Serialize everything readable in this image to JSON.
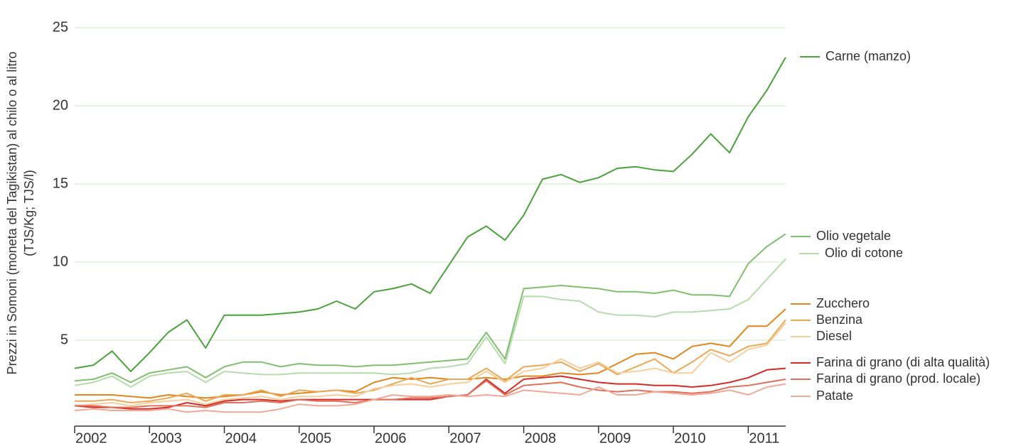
{
  "chart_data": {
    "type": "line",
    "ylabel": [
      "Prezzi in Somoni (moneta del Tagikistan) al chilo o al litro",
      "(TJS/Kg; TJS/l)"
    ],
    "x": [
      2002,
      2002.25,
      2002.5,
      2002.75,
      2003,
      2003.25,
      2003.5,
      2003.75,
      2004,
      2004.25,
      2004.5,
      2004.75,
      2005,
      2005.25,
      2005.5,
      2005.75,
      2006,
      2006.25,
      2006.5,
      2006.75,
      2007,
      2007.25,
      2007.5,
      2007.75,
      2008,
      2008.25,
      2008.5,
      2008.75,
      2009,
      2009.25,
      2009.5,
      2009.75,
      2010,
      2010.25,
      2010.5,
      2010.75,
      2011,
      2011.25,
      2011.5
    ],
    "xlim": [
      2002,
      2011.5
    ],
    "xticks": [
      2002,
      2003,
      2004,
      2005,
      2006,
      2007,
      2008,
      2009,
      2010,
      2011
    ],
    "ylim": [
      -0.5,
      25.5
    ],
    "yticks": [
      5,
      10,
      15,
      20,
      25
    ],
    "grid": true,
    "series": [
      {
        "name": "Carne (manzo)",
        "color": "#4aa23a",
        "values": [
          3.2,
          3.4,
          4.3,
          3.0,
          4.2,
          5.5,
          6.3,
          4.5,
          6.6,
          6.6,
          6.6,
          6.7,
          6.8,
          7.0,
          7.5,
          7.0,
          8.1,
          8.3,
          8.6,
          8.0,
          9.8,
          11.6,
          12.3,
          11.4,
          13.0,
          15.3,
          15.6,
          15.1,
          15.4,
          16.0,
          16.1,
          15.9,
          15.8,
          16.9,
          18.2,
          17.0,
          19.3,
          21.0,
          23.1
        ]
      },
      {
        "name": "Olio vegetale",
        "color": "#7fbf6e",
        "values": [
          2.4,
          2.5,
          2.9,
          2.3,
          2.9,
          3.1,
          3.3,
          2.6,
          3.3,
          3.6,
          3.6,
          3.3,
          3.5,
          3.4,
          3.4,
          3.3,
          3.4,
          3.4,
          3.5,
          3.6,
          3.7,
          3.8,
          5.5,
          3.8,
          8.3,
          8.4,
          8.5,
          8.4,
          8.3,
          8.1,
          8.1,
          8.0,
          8.2,
          7.9,
          7.9,
          7.8,
          9.9,
          11.0,
          11.8
        ]
      },
      {
        "name": "Olio di cotone",
        "color": "#b6dcab",
        "values": [
          2.1,
          2.3,
          2.7,
          2.0,
          2.7,
          2.9,
          3.0,
          2.3,
          3.0,
          2.9,
          2.8,
          2.8,
          2.9,
          2.9,
          2.9,
          2.9,
          2.9,
          2.8,
          2.9,
          3.2,
          3.3,
          3.5,
          5.2,
          3.5,
          7.8,
          7.8,
          7.6,
          7.5,
          6.8,
          6.6,
          6.6,
          6.5,
          6.8,
          6.8,
          6.9,
          7.0,
          7.6,
          8.9,
          10.2
        ]
      },
      {
        "name": "Zucchero",
        "color": "#e0861c",
        "values": [
          1.5,
          1.5,
          1.5,
          1.4,
          1.3,
          1.5,
          1.4,
          1.3,
          1.4,
          1.5,
          1.7,
          1.5,
          1.6,
          1.7,
          1.8,
          1.7,
          2.3,
          2.6,
          2.5,
          2.6,
          2.5,
          2.5,
          2.6,
          2.5,
          2.7,
          2.7,
          2.9,
          2.8,
          2.9,
          3.5,
          4.1,
          4.2,
          3.8,
          4.6,
          4.8,
          4.6,
          5.9,
          5.9,
          7.0
        ]
      },
      {
        "name": "Benzina",
        "color": "#eda855",
        "values": [
          1.1,
          1.1,
          1.2,
          1.0,
          1.1,
          1.3,
          1.6,
          1.1,
          1.5,
          1.5,
          1.8,
          1.4,
          1.8,
          1.7,
          1.8,
          1.6,
          1.8,
          2.2,
          2.6,
          2.2,
          2.5,
          2.5,
          3.2,
          2.4,
          3.3,
          3.4,
          3.6,
          3.0,
          3.5,
          2.8,
          3.3,
          3.8,
          2.9,
          3.6,
          4.4,
          4.0,
          4.6,
          4.8,
          6.3
        ]
      },
      {
        "name": "Diesel",
        "color": "#f5cf9c",
        "values": [
          0.8,
          0.9,
          1.0,
          0.8,
          1.0,
          1.1,
          1.2,
          0.9,
          1.2,
          1.3,
          1.4,
          1.2,
          1.4,
          1.4,
          1.5,
          1.4,
          1.9,
          2.1,
          2.2,
          2.0,
          2.2,
          2.3,
          3.0,
          2.3,
          3.0,
          3.2,
          3.8,
          3.2,
          3.6,
          2.9,
          3.0,
          3.2,
          2.9,
          2.9,
          4.2,
          3.6,
          4.4,
          4.7,
          6.1
        ]
      },
      {
        "name": "Farina di grano (di alta qualità)",
        "color": "#d42a28",
        "values": [
          0.8,
          0.7,
          0.7,
          0.6,
          0.6,
          0.7,
          1.0,
          0.8,
          1.1,
          1.2,
          1.2,
          1.1,
          1.2,
          1.2,
          1.2,
          1.2,
          1.2,
          1.2,
          1.2,
          1.2,
          1.4,
          1.5,
          2.5,
          1.6,
          2.5,
          2.6,
          2.7,
          2.5,
          2.3,
          2.2,
          2.2,
          2.1,
          2.1,
          2.0,
          2.1,
          2.3,
          2.6,
          3.1,
          3.2
        ]
      },
      {
        "name": "Farina di grano (prod. locale)",
        "color": "#e0705a",
        "values": [
          0.8,
          0.8,
          0.7,
          0.7,
          0.8,
          0.8,
          0.8,
          0.7,
          1.0,
          1.0,
          1.1,
          1.0,
          1.2,
          1.1,
          1.1,
          1.0,
          1.2,
          1.2,
          1.3,
          1.3,
          1.4,
          1.5,
          2.4,
          1.5,
          2.1,
          2.2,
          2.3,
          2.0,
          1.8,
          1.7,
          1.8,
          1.7,
          1.7,
          1.6,
          1.7,
          2.0,
          2.1,
          2.3,
          2.5
        ]
      },
      {
        "name": "Patate",
        "color": "#f1a896",
        "values": [
          0.5,
          0.6,
          0.5,
          0.5,
          0.5,
          0.6,
          0.4,
          0.5,
          0.4,
          0.4,
          0.4,
          0.6,
          0.9,
          0.8,
          0.8,
          0.9,
          1.2,
          1.5,
          1.4,
          1.4,
          1.5,
          1.4,
          1.5,
          1.4,
          1.8,
          1.7,
          1.6,
          1.5,
          2.0,
          1.5,
          1.5,
          1.7,
          1.6,
          1.5,
          1.6,
          1.8,
          1.5,
          2.0,
          2.2
        ]
      }
    ]
  }
}
